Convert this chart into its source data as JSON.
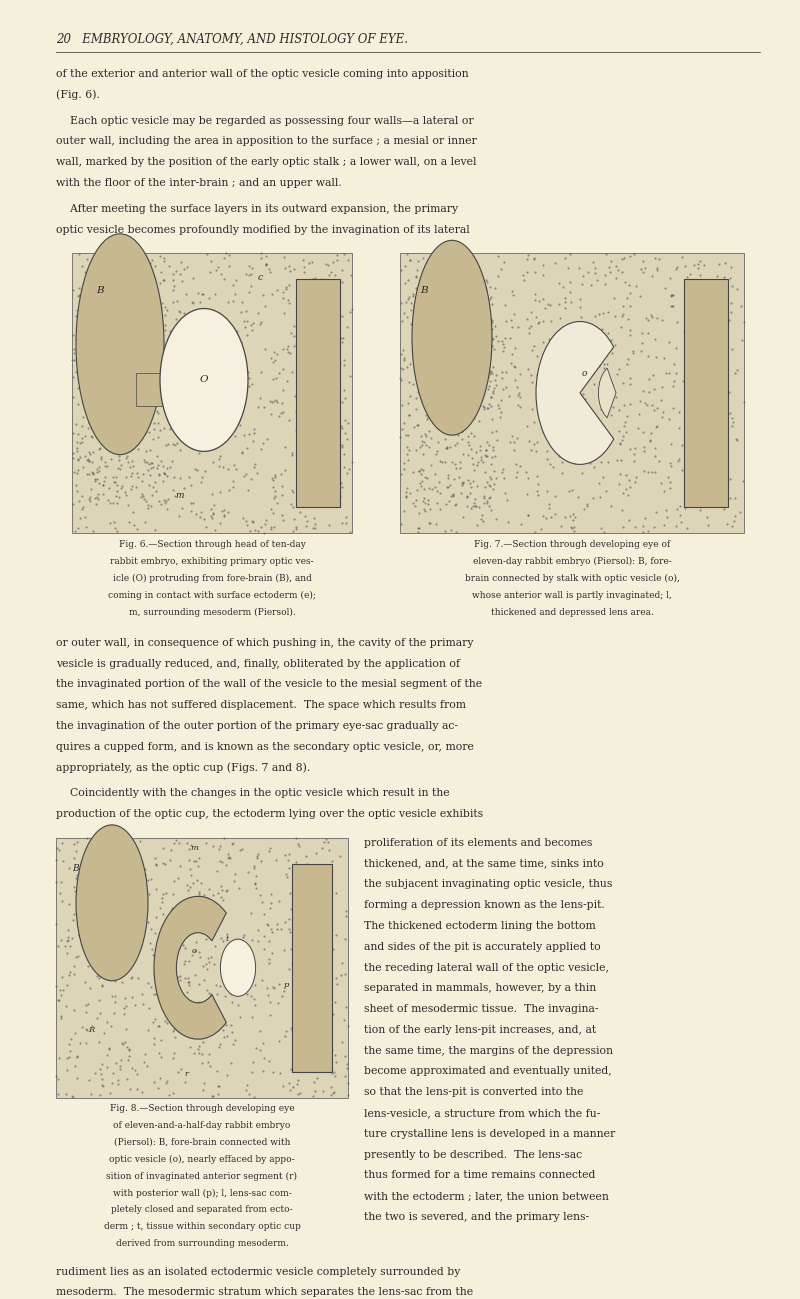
{
  "background_color": "#f5f0dc",
  "page_width": 8.0,
  "page_height": 12.99,
  "text_color": "#2a2a2a",
  "header_text": "20   EMBRYOLOGY, ANATOMY, AND HISTOLOGY OF EYE.",
  "paragraph1": "of the exterior and anterior wall of the optic vesicle coming into apposition\n(Fig. 6).",
  "paragraph2": "    Each optic vesicle may be regarded as possessing four walls—a lateral or\nouter wall, including the area in apposition to the surface ; a mesial or inner\nwall, marked by the position of the early optic stalk ; a lower wall, on a level\nwith the floor of the inter-brain ; and an upper wall.",
  "paragraph3": "    After meeting the surface layers in its outward expansion, the primary\noptic vesicle becomes profoundly modified by the invagination of its lateral",
  "fig6_caption": "Fig. 6.—Section through head of ten-day\nrabbit embryo, exhibiting primary optic ves-\nicle (O) protruding from fore-brain (B), and\ncoming in contact with surface ectoderm (e);\nm, surrounding mesoderm (Piersol).",
  "fig7_caption": "Fig. 7.—Section through developing eye of\neleven-day rabbit embryo (Piersol): B, fore-\nbrain connected by stalk with optic vesicle (o),\nwhose anterior wall is partly invaginated; l,\nthickened and depressed lens area.",
  "paragraph4": "or outer wall, in consequence of which pushing in, the cavity of the primary\nvesicle is gradually reduced, and, finally, obliterated by the application of\nthe invaginated portion of the wall of the vesicle to the mesial segment of the\nsame, which has not suffered displacement.  The space which results from\nthe invagination of the outer portion of the primary eye-sac gradually ac-\nquires a cupped form, and is known as the secondary optic vesicle, or, more\nappropriately, as the optic cup (Figs. 7 and 8).",
  "paragraph5": "    Coincidently with the changes in the optic vesicle which result in the\nproduction of the optic cup, the ectoderm lying over the optic vesicle exhibits",
  "paragraph6_right": "proliferation of its elements and becomes\nthickened, and, at the same time, sinks into\nthe subjacent invaginating optic vesicle, thus\nforming a depression known as the lens-pit.\nThe thickened ectoderm lining the bottom\nand sides of the pit is accurately applied to\nthe receding lateral wall of the optic vesicle,\nseparated in mammals, however, by a thin\nsheet of mesodermic tissue.  The invagina-\ntion of the early lens-pit increases, and, at\nthe same time, the margins of the depression\nbecome approximated and eventually united,\nso that the lens-pit is converted into the\nlens-vesicle, a structure from which the fu-\nture crystalline lens is developed in a manner\npresently to be described.  The lens-sac\nthus formed for a time remains connected\nwith the ectoderm ; later, the union between\nthe two is severed, and the primary lens-\nrudiment lies as an isolated ectodermic vesicle completely surrounded by\nmesoderm.  The mesodermic stratum which separates the lens-sac from the",
  "fig8_caption": "Fig. 8.—Section through developing eye\nof eleven-and-a-half-day rabbit embryo\n(Piersol): B, fore-brain connected with\noptic vesicle (o), nearly effaced by appo-\nsition of invaginated anterior segment (r)\nwith posterior wall (p); l, lens-sac com-\npletely closed and separated from ecto-\nderm ; t, tissue within secondary optic cup\nderived from surrounding mesoderm."
}
